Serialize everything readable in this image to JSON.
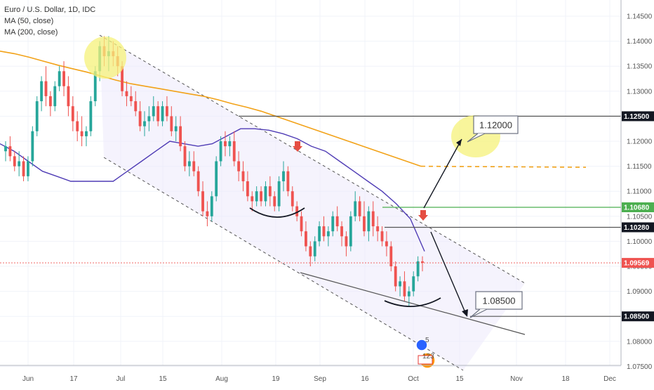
{
  "chart_data": {
    "type": "candlestick",
    "title": "Euro / U.S. Dollar, 1D, IDC",
    "indicators": [
      {
        "name": "MA (50, close)",
        "color": "#4f3cb5"
      },
      {
        "name": "MA (200, close)",
        "color": "#f2a218"
      }
    ],
    "x_ticks": [
      "Jun",
      "17",
      "Jul",
      "15",
      "Aug",
      "19",
      "Sep",
      "16",
      "Oct",
      "15",
      "Nov",
      "18",
      "Dec"
    ],
    "y_ticks": [
      "1.14500",
      "1.14000",
      "1.13500",
      "1.13000",
      "1.12500",
      "1.12000",
      "1.11500",
      "1.11000",
      "1.10500",
      "1.10000",
      "1.09500",
      "1.09000",
      "1.08500",
      "1.08000",
      "1.07500"
    ],
    "ylim": [
      1.075,
      1.148
    ],
    "price_levels": [
      {
        "label": "1.12500",
        "value": 1.125,
        "color": "#555555"
      },
      {
        "label": "1.10680",
        "value": 1.1068,
        "color": "#4caf50"
      },
      {
        "label": "1.10280",
        "value": 1.1028,
        "color": "#555555"
      },
      {
        "label": "1.09569",
        "value": 1.09569,
        "color": "#ef5350"
      },
      {
        "label": "1.08500",
        "value": 1.085,
        "color": "#555555"
      }
    ],
    "annotations": [
      "1.12000",
      "1.08500"
    ],
    "event_badges": [
      "5",
      "123"
    ],
    "candles": [
      [
        1.118,
        1.12,
        1.116,
        1.119
      ],
      [
        1.119,
        1.121,
        1.116,
        1.117
      ],
      [
        1.117,
        1.118,
        1.114,
        1.115
      ],
      [
        1.115,
        1.118,
        1.113,
        1.116
      ],
      [
        1.116,
        1.117,
        1.112,
        1.113
      ],
      [
        1.113,
        1.117,
        1.112,
        1.116
      ],
      [
        1.116,
        1.123,
        1.115,
        1.122
      ],
      [
        1.122,
        1.129,
        1.121,
        1.128
      ],
      [
        1.128,
        1.133,
        1.126,
        1.132
      ],
      [
        1.132,
        1.135,
        1.127,
        1.129
      ],
      [
        1.129,
        1.13,
        1.125,
        1.127
      ],
      [
        1.127,
        1.132,
        1.126,
        1.131
      ],
      [
        1.131,
        1.135,
        1.13,
        1.134
      ],
      [
        1.134,
        1.136,
        1.129,
        1.131
      ],
      [
        1.131,
        1.133,
        1.125,
        1.127
      ],
      [
        1.127,
        1.129,
        1.122,
        1.124
      ],
      [
        1.124,
        1.126,
        1.12,
        1.122
      ],
      [
        1.122,
        1.125,
        1.119,
        1.121
      ],
      [
        1.121,
        1.123,
        1.119,
        1.122
      ],
      [
        1.122,
        1.129,
        1.121,
        1.128
      ],
      [
        1.128,
        1.135,
        1.127,
        1.134
      ],
      [
        1.134,
        1.14,
        1.132,
        1.139
      ],
      [
        1.139,
        1.141,
        1.135,
        1.137
      ],
      [
        1.137,
        1.141,
        1.134,
        1.138
      ],
      [
        1.138,
        1.14,
        1.135,
        1.137
      ],
      [
        1.137,
        1.139,
        1.133,
        1.135
      ],
      [
        1.135,
        1.136,
        1.129,
        1.13
      ],
      [
        1.13,
        1.132,
        1.127,
        1.129
      ],
      [
        1.129,
        1.131,
        1.127,
        1.128
      ],
      [
        1.128,
        1.13,
        1.125,
        1.126
      ],
      [
        1.126,
        1.128,
        1.122,
        1.123
      ],
      [
        1.123,
        1.126,
        1.121,
        1.124
      ],
      [
        1.124,
        1.127,
        1.122,
        1.125
      ],
      [
        1.125,
        1.129,
        1.124,
        1.127
      ],
      [
        1.127,
        1.128,
        1.123,
        1.124
      ],
      [
        1.124,
        1.128,
        1.123,
        1.127
      ],
      [
        1.127,
        1.129,
        1.124,
        1.125
      ],
      [
        1.125,
        1.127,
        1.121,
        1.122
      ],
      [
        1.122,
        1.125,
        1.12,
        1.123
      ],
      [
        1.123,
        1.125,
        1.118,
        1.119
      ],
      [
        1.119,
        1.12,
        1.114,
        1.115
      ],
      [
        1.115,
        1.118,
        1.113,
        1.116
      ],
      [
        1.116,
        1.118,
        1.113,
        1.114
      ],
      [
        1.114,
        1.115,
        1.109,
        1.11
      ],
      [
        1.11,
        1.112,
        1.105,
        1.106
      ],
      [
        1.106,
        1.108,
        1.103,
        1.105
      ],
      [
        1.105,
        1.11,
        1.104,
        1.109
      ],
      [
        1.109,
        1.117,
        1.108,
        1.116
      ],
      [
        1.116,
        1.121,
        1.115,
        1.12
      ],
      [
        1.12,
        1.122,
        1.117,
        1.119
      ],
      [
        1.119,
        1.121,
        1.117,
        1.12
      ],
      [
        1.12,
        1.122,
        1.115,
        1.116
      ],
      [
        1.116,
        1.118,
        1.112,
        1.114
      ],
      [
        1.114,
        1.116,
        1.11,
        1.112
      ],
      [
        1.112,
        1.114,
        1.108,
        1.109
      ],
      [
        1.109,
        1.11,
        1.106,
        1.108
      ],
      [
        1.108,
        1.111,
        1.107,
        1.11
      ],
      [
        1.11,
        1.111,
        1.107,
        1.108
      ],
      [
        1.108,
        1.112,
        1.107,
        1.111
      ],
      [
        1.111,
        1.113,
        1.107,
        1.109
      ],
      [
        1.109,
        1.11,
        1.106,
        1.107
      ],
      [
        1.107,
        1.113,
        1.106,
        1.112
      ],
      [
        1.112,
        1.116,
        1.11,
        1.114
      ],
      [
        1.114,
        1.115,
        1.109,
        1.11
      ],
      [
        1.11,
        1.111,
        1.106,
        1.107
      ],
      [
        1.107,
        1.108,
        1.104,
        1.105
      ],
      [
        1.105,
        1.106,
        1.101,
        1.102
      ],
      [
        1.102,
        1.104,
        1.098,
        1.099
      ],
      [
        1.099,
        1.1,
        1.095,
        1.097
      ],
      [
        1.097,
        1.101,
        1.096,
        1.1
      ],
      [
        1.1,
        1.104,
        1.099,
        1.103
      ],
      [
        1.103,
        1.105,
        1.1,
        1.101
      ],
      [
        1.101,
        1.103,
        1.099,
        1.102
      ],
      [
        1.102,
        1.106,
        1.101,
        1.105
      ],
      [
        1.105,
        1.107,
        1.102,
        1.103
      ],
      [
        1.103,
        1.104,
        1.099,
        1.101
      ],
      [
        1.101,
        1.102,
        1.097,
        1.099
      ],
      [
        1.099,
        1.106,
        1.098,
        1.105
      ],
      [
        1.105,
        1.11,
        1.104,
        1.108
      ],
      [
        1.108,
        1.109,
        1.104,
        1.105
      ],
      [
        1.105,
        1.108,
        1.101,
        1.102
      ],
      [
        1.102,
        1.107,
        1.1,
        1.106
      ],
      [
        1.106,
        1.108,
        1.101,
        1.103
      ],
      [
        1.103,
        1.105,
        1.1,
        1.102
      ],
      [
        1.102,
        1.103,
        1.099,
        1.1
      ],
      [
        1.1,
        1.102,
        1.097,
        1.099
      ],
      [
        1.099,
        1.1,
        1.094,
        1.095
      ],
      [
        1.095,
        1.096,
        1.09,
        1.091
      ],
      [
        1.091,
        1.093,
        1.089,
        1.092
      ],
      [
        1.092,
        1.094,
        1.088,
        1.089
      ],
      [
        1.089,
        1.091,
        1.087,
        1.09
      ],
      [
        1.09,
        1.094,
        1.089,
        1.093
      ],
      [
        1.093,
        1.097,
        1.092,
        1.096
      ],
      [
        1.096,
        1.097,
        1.094,
        1.0957
      ]
    ],
    "ma50": [
      1.1195,
      1.118,
      1.116,
      1.114,
      1.113,
      1.112,
      1.112,
      1.112,
      1.112,
      1.114,
      1.116,
      1.118,
      1.12,
      1.1195,
      1.119,
      1.1195,
      1.121,
      1.1225,
      1.1225,
      1.1222,
      1.1215,
      1.1205,
      1.119,
      1.118,
      1.116,
      1.114,
      1.112,
      1.11,
      1.1075,
      1.1045,
      1.098
    ],
    "ma200": [
      1.138,
      1.1375,
      1.1368,
      1.136,
      1.1352,
      1.1345,
      1.1338,
      1.133,
      1.1322,
      1.1315,
      1.131,
      1.1305,
      1.13,
      1.1295,
      1.129,
      1.1283,
      1.1275,
      1.1268,
      1.126,
      1.125,
      1.124,
      1.123,
      1.122,
      1.121,
      1.12,
      1.119,
      1.118,
      1.117,
      1.116,
      1.115
    ]
  }
}
